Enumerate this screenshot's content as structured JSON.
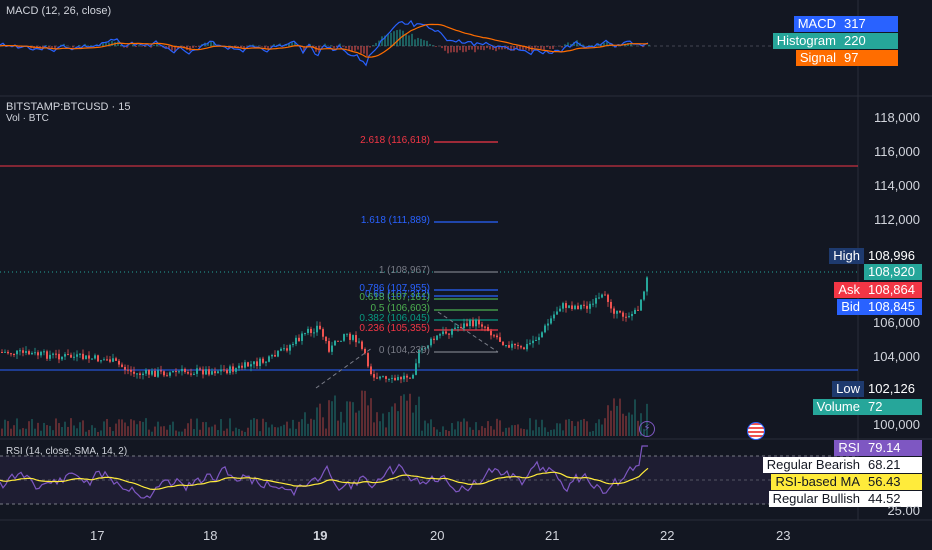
{
  "macd_pane": {
    "title": "MACD (12, 26, close)",
    "tags": [
      {
        "name": "MACD",
        "value": "317",
        "color": "#2962ff"
      },
      {
        "name": "Histogram",
        "value": "220",
        "color": "#26a69a"
      },
      {
        "name": "Signal",
        "value": "97",
        "color": "#ff6d00"
      }
    ]
  },
  "main_pane": {
    "symbol": "BITSTAMP:BTCUSD · 15",
    "volume_label": "Vol · BTC",
    "price_axis": [
      "118,000",
      "116,000",
      "114,000",
      "112,000",
      "106,000",
      "104,000",
      "100,000"
    ],
    "fib_levels": [
      {
        "label": "2.618 (116,618)",
        "color": "#f23645"
      },
      {
        "label": "1.618 (111,889)",
        "color": "#2962ff"
      },
      {
        "label": "1 (108,967)",
        "color": "#787b86"
      },
      {
        "label": "0.786 (107,955)",
        "color": "#2962ff"
      },
      {
        "label": "0.65 (107,312)",
        "color": "#2962ff"
      },
      {
        "label": "0.618 (107,161)",
        "color": "#4caf50"
      },
      {
        "label": "0.5 (106,603)",
        "color": "#4caf50"
      },
      {
        "label": "0.382 (106,045)",
        "color": "#089981"
      },
      {
        "label": "0.236 (105,355)",
        "color": "#f23645"
      },
      {
        "label": "0 (104,239)",
        "color": "#787b86"
      }
    ],
    "tags": [
      {
        "name": "High",
        "value": "108,996",
        "color": "#1e3a6e",
        "vcolor": "#131722"
      },
      {
        "name": "",
        "value": "108,920",
        "color": "#26a69a",
        "vcolor": "#26a69a"
      },
      {
        "name": "Ask",
        "value": "108,864",
        "color": "#f23645",
        "vcolor": "#f23645"
      },
      {
        "name": "Bid",
        "value": "108,845",
        "color": "#2962ff",
        "vcolor": "#2962ff"
      },
      {
        "name": "Low",
        "value": "102,126",
        "color": "#1e3a6e",
        "vcolor": "#131722"
      },
      {
        "name": "Volume",
        "value": "72",
        "color": "#26a69a",
        "vcolor": "#26a69a"
      }
    ]
  },
  "rsi_pane": {
    "title": "RSI (14, close, SMA, 14, 2)",
    "tags": [
      {
        "name": "RSI",
        "value": "79.14",
        "color": "#7e57c2",
        "vcolor": "#7e57c2",
        "text": "#ffffff"
      },
      {
        "name": "Regular Bearish",
        "value": "68.21",
        "color": "#ffffff",
        "vcolor": "#ffffff",
        "text": "#131722"
      },
      {
        "name": "RSI-based MA",
        "value": "56.43",
        "color": "#ffeb3b",
        "vcolor": "#ffeb3b",
        "text": "#131722"
      },
      {
        "name": "Regular Bullish",
        "value": "44.52",
        "color": "#ffffff",
        "vcolor": "#ffffff",
        "text": "#131722"
      }
    ],
    "axis_label": "25.00"
  },
  "time_axis": [
    "17",
    "18",
    "19",
    "20",
    "21",
    "22",
    "23"
  ],
  "colors": {
    "up": "#26a69a",
    "down": "#ef5350",
    "accent": "#2962ff"
  }
}
